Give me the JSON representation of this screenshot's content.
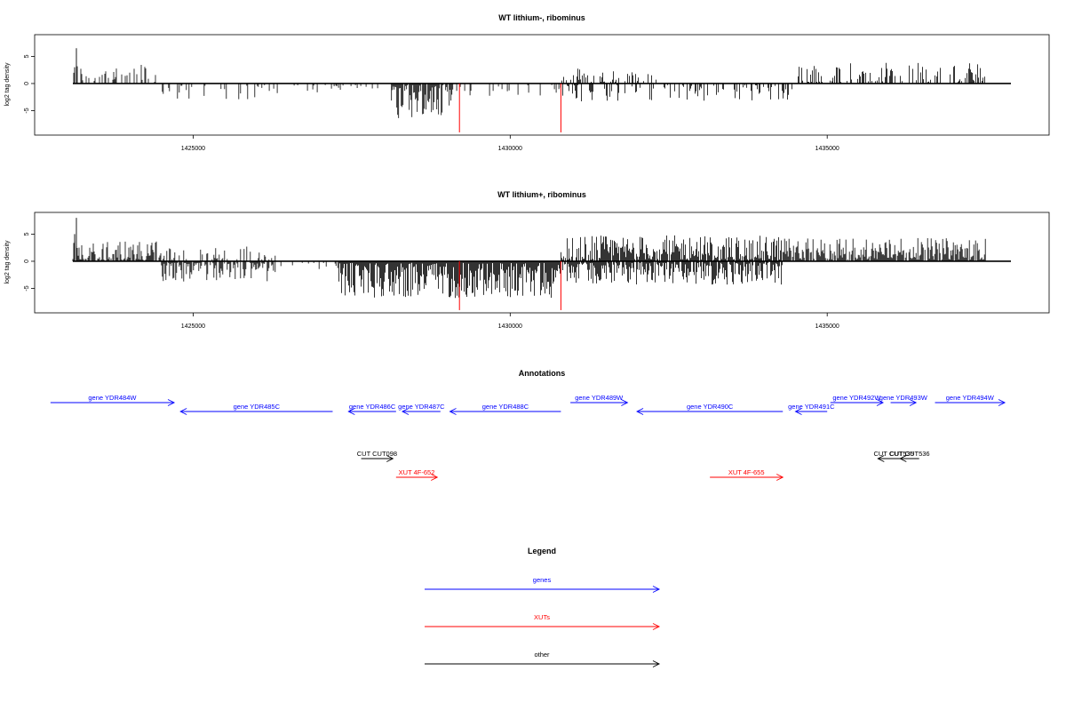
{
  "colors": {
    "gene": "#0000ff",
    "xut": "#ff0000",
    "other": "#000000",
    "marker": "#ff0000",
    "axis": "#000000"
  },
  "chart_data": [
    {
      "type": "bar",
      "title": "WT lithium-, ribominus",
      "ylabel": "log2 tag density",
      "xlim": [
        1422500,
        1438500
      ],
      "ylim": [
        -9.5,
        9
      ],
      "xticks": [
        1425000,
        1430000,
        1435000
      ],
      "yticks": [
        5,
        0,
        -5
      ],
      "grid": false,
      "markers_x": [
        1429200,
        1430800
      ],
      "regions": [
        {
          "start": 1422300,
          "end": 1424500,
          "sign": 1,
          "max": 3.5,
          "density": 0.35
        },
        {
          "start": 1424500,
          "end": 1426200,
          "sign": -1,
          "max": 3.0,
          "density": 0.25
        },
        {
          "start": 1426200,
          "end": 1428100,
          "sign": -1,
          "max": 1.5,
          "density": 0.15
        },
        {
          "start": 1428100,
          "end": 1429100,
          "sign": -1,
          "max": 6.5,
          "density": 0.85
        },
        {
          "start": 1429100,
          "end": 1430800,
          "sign": -1,
          "max": 2.0,
          "density": 0.2
        },
        {
          "start": 1430800,
          "end": 1432300,
          "sign": 1,
          "max": 2.8,
          "density": 0.3
        },
        {
          "start": 1430800,
          "end": 1434500,
          "sign": -1,
          "max": 3.0,
          "density": 0.3
        },
        {
          "start": 1434500,
          "end": 1437500,
          "sign": 1,
          "max": 3.5,
          "density": 0.4
        }
      ]
    },
    {
      "type": "bar",
      "title": "WT lithium+, ribominus",
      "ylabel": "log2 tag density",
      "xlim": [
        1422500,
        1438500
      ],
      "ylim": [
        -9.5,
        9
      ],
      "xticks": [
        1425000,
        1430000,
        1435000
      ],
      "yticks": [
        5,
        0,
        -5
      ],
      "grid": false,
      "markers_x": [
        1429200,
        1430800
      ],
      "regions": [
        {
          "start": 1422300,
          "end": 1424500,
          "sign": 1,
          "max": 3.5,
          "density": 0.8
        },
        {
          "start": 1424500,
          "end": 1426300,
          "sign": -1,
          "max": 3.5,
          "density": 0.75
        },
        {
          "start": 1424500,
          "end": 1426300,
          "sign": 1,
          "max": 2.5,
          "density": 0.3
        },
        {
          "start": 1426300,
          "end": 1427300,
          "sign": -1,
          "max": 1.2,
          "density": 0.15
        },
        {
          "start": 1427300,
          "end": 1430800,
          "sign": -1,
          "max": 6.5,
          "density": 1.0
        },
        {
          "start": 1430800,
          "end": 1434300,
          "sign": 1,
          "max": 4.5,
          "density": 0.85
        },
        {
          "start": 1430800,
          "end": 1434300,
          "sign": -1,
          "max": 4.0,
          "density": 0.85
        },
        {
          "start": 1434300,
          "end": 1437500,
          "sign": 1,
          "max": 4.0,
          "density": 0.85
        }
      ]
    }
  ],
  "annotations": {
    "title": "Annotations",
    "items": [
      {
        "label": "gene YDR484W",
        "kind": "gene",
        "start": 1422750,
        "end": 1424700,
        "dir": "right",
        "row": 0
      },
      {
        "label": "gene YDR485C",
        "kind": "gene",
        "start": 1424800,
        "end": 1427200,
        "dir": "left",
        "row": 1
      },
      {
        "label": "gene YDR486C",
        "kind": "gene",
        "start": 1427450,
        "end": 1428200,
        "dir": "left",
        "row": 1
      },
      {
        "label": "gene YDR487C",
        "kind": "gene",
        "start": 1428300,
        "end": 1428900,
        "dir": "left",
        "row": 1
      },
      {
        "label": "gene YDR488C",
        "kind": "gene",
        "start": 1429050,
        "end": 1430800,
        "dir": "left",
        "row": 1
      },
      {
        "label": "gene YDR489W",
        "kind": "gene",
        "start": 1430950,
        "end": 1431850,
        "dir": "right",
        "row": 0
      },
      {
        "label": "gene YDR490C",
        "kind": "gene",
        "start": 1432000,
        "end": 1434300,
        "dir": "left",
        "row": 1
      },
      {
        "label": "gene YDR491C",
        "kind": "gene",
        "start": 1434500,
        "end": 1435000,
        "dir": "left",
        "row": 1
      },
      {
        "label": "gene YDR492W",
        "kind": "gene",
        "start": 1435050,
        "end": 1435880,
        "dir": "right",
        "row": 0
      },
      {
        "label": "gene YDR493W",
        "kind": "gene",
        "start": 1436000,
        "end": 1436400,
        "dir": "right",
        "row": 0
      },
      {
        "label": "gene YDR494W",
        "kind": "gene",
        "start": 1436700,
        "end": 1437800,
        "dir": "right",
        "row": 0
      },
      {
        "label": "CUT CUT098",
        "kind": "other",
        "start": 1427650,
        "end": 1428150,
        "dir": "right",
        "row": 2
      },
      {
        "label": "XUT 4F-652",
        "kind": "xut",
        "start": 1428200,
        "end": 1428850,
        "dir": "right",
        "row": 3
      },
      {
        "label": "XUT 4F-655",
        "kind": "xut",
        "start": 1433150,
        "end": 1434300,
        "dir": "right",
        "row": 3
      },
      {
        "label": "CUT CUT535",
        "kind": "other",
        "start": 1435800,
        "end": 1436300,
        "dir": "left",
        "row": 2
      },
      {
        "label": "CUT CUT536",
        "kind": "other",
        "start": 1436150,
        "end": 1436450,
        "dir": "left",
        "row": 2
      }
    ]
  },
  "legend": {
    "title": "Legend",
    "items": [
      {
        "label": "genes",
        "kind": "gene"
      },
      {
        "label": "XUTs",
        "kind": "xut"
      },
      {
        "label": "other",
        "kind": "other"
      }
    ]
  }
}
